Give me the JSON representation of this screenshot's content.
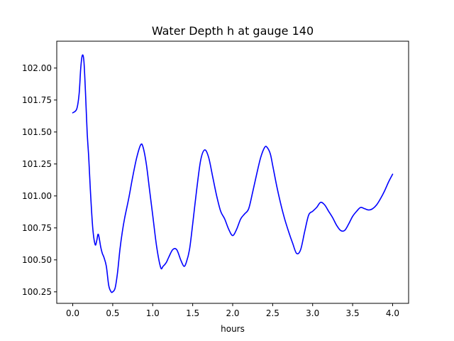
{
  "chart_data": {
    "type": "line",
    "title": "Water Depth h at gauge 140",
    "xlabel": "hours",
    "ylabel": "",
    "xlim": [
      -0.2,
      4.2
    ],
    "ylim": [
      100.16,
      102.21
    ],
    "grid": false,
    "legend": "none",
    "x_ticks": [
      0.0,
      0.5,
      1.0,
      1.5,
      2.0,
      2.5,
      3.0,
      3.5,
      4.0
    ],
    "x_tick_labels": [
      "0.0",
      "0.5",
      "1.0",
      "1.5",
      "2.0",
      "2.5",
      "3.0",
      "3.5",
      "4.0"
    ],
    "y_ticks": [
      100.25,
      100.5,
      100.75,
      101.0,
      101.25,
      101.5,
      101.75,
      102.0
    ],
    "y_tick_labels": [
      "100.25",
      "100.50",
      "100.75",
      "101.00",
      "101.25",
      "101.50",
      "101.75",
      "102.00"
    ],
    "series": [
      {
        "color": "#0000ff",
        "x": [
          0.0,
          0.05,
          0.08,
          0.1,
          0.12,
          0.14,
          0.16,
          0.18,
          0.2,
          0.22,
          0.25,
          0.28,
          0.3,
          0.32,
          0.35,
          0.37,
          0.39,
          0.42,
          0.45,
          0.48,
          0.5,
          0.53,
          0.56,
          0.59,
          0.62,
          0.65,
          0.7,
          0.75,
          0.8,
          0.85,
          0.88,
          0.92,
          0.96,
          1.0,
          1.05,
          1.1,
          1.13,
          1.17,
          1.2,
          1.25,
          1.3,
          1.35,
          1.39,
          1.42,
          1.46,
          1.5,
          1.55,
          1.6,
          1.65,
          1.7,
          1.75,
          1.8,
          1.85,
          1.9,
          1.95,
          2.0,
          2.05,
          2.1,
          2.15,
          2.2,
          2.25,
          2.3,
          2.35,
          2.4,
          2.43,
          2.47,
          2.5,
          2.55,
          2.6,
          2.65,
          2.7,
          2.75,
          2.8,
          2.85,
          2.9,
          2.95,
          3.0,
          3.05,
          3.1,
          3.15,
          3.2,
          3.25,
          3.3,
          3.35,
          3.4,
          3.45,
          3.5,
          3.55,
          3.6,
          3.65,
          3.7,
          3.75,
          3.8,
          3.85,
          3.9,
          3.95,
          4.0
        ],
        "y": [
          101.65,
          101.68,
          101.8,
          102.0,
          102.1,
          102.05,
          101.8,
          101.5,
          101.3,
          101.05,
          100.75,
          100.62,
          100.65,
          100.7,
          100.6,
          100.55,
          100.52,
          100.45,
          100.3,
          100.25,
          100.25,
          100.28,
          100.4,
          100.58,
          100.72,
          100.83,
          100.98,
          101.15,
          101.3,
          101.4,
          101.38,
          101.25,
          101.05,
          100.85,
          100.6,
          100.44,
          100.45,
          100.48,
          100.52,
          100.58,
          100.58,
          100.5,
          100.45,
          100.48,
          100.58,
          100.78,
          101.05,
          101.28,
          101.36,
          101.3,
          101.15,
          101.0,
          100.88,
          100.82,
          100.74,
          100.69,
          100.74,
          100.82,
          100.86,
          100.9,
          101.03,
          101.17,
          101.3,
          101.38,
          101.38,
          101.33,
          101.24,
          101.08,
          100.94,
          100.82,
          100.72,
          100.63,
          100.55,
          100.58,
          100.72,
          100.85,
          100.88,
          100.91,
          100.95,
          100.93,
          100.88,
          100.83,
          100.77,
          100.73,
          100.73,
          100.78,
          100.84,
          100.88,
          100.91,
          100.9,
          100.89,
          100.9,
          100.93,
          100.98,
          101.04,
          101.11,
          101.17
        ]
      }
    ]
  }
}
